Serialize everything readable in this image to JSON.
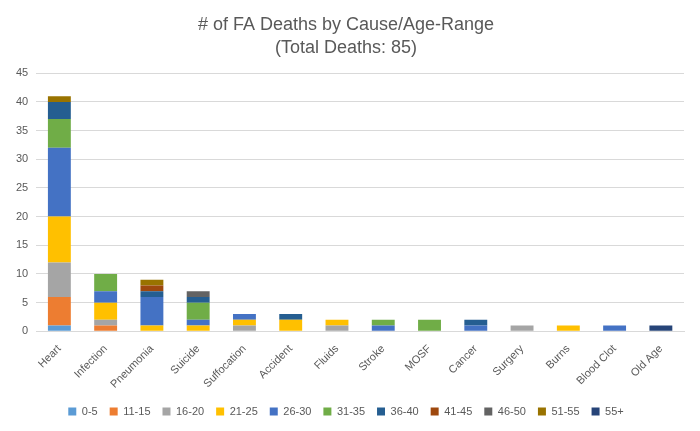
{
  "chart_data": {
    "type": "bar",
    "title": "# of FA Deaths by Cause/Age-Range",
    "subtitle": "(Total Deaths: 85)",
    "categories": [
      "Heart",
      "Infection",
      "Pneumonia",
      "Suicide",
      "Suffocation",
      "Accident",
      "Fluids",
      "Stroke",
      "MOSF",
      "Cancer",
      "Surgery",
      "Burns",
      "Blood Clot",
      "Old Age"
    ],
    "series": [
      {
        "name": "0-5",
        "color": "#5B9BD5",
        "values": [
          1,
          0,
          0,
          0,
          0,
          0,
          0,
          0,
          0,
          0,
          0,
          0,
          0,
          0
        ]
      },
      {
        "name": "11-15",
        "color": "#ED7D31",
        "values": [
          5,
          1,
          0,
          0,
          0,
          0,
          0,
          0,
          0,
          0,
          0,
          0,
          0,
          0
        ]
      },
      {
        "name": "16-20",
        "color": "#A5A5A5",
        "values": [
          6,
          1,
          0,
          0,
          1,
          0,
          1,
          0,
          0,
          0,
          1,
          0,
          0,
          0
        ]
      },
      {
        "name": "21-25",
        "color": "#FFC000",
        "values": [
          8,
          3,
          1,
          1,
          1,
          2,
          1,
          0,
          0,
          0,
          0,
          1,
          0,
          0
        ]
      },
      {
        "name": "26-30",
        "color": "#4472C4",
        "values": [
          12,
          2,
          5,
          1,
          1,
          0,
          0,
          1,
          0,
          1,
          0,
          0,
          1,
          0
        ]
      },
      {
        "name": "31-35",
        "color": "#70AD47",
        "values": [
          5,
          3,
          0,
          3,
          0,
          0,
          0,
          1,
          2,
          0,
          0,
          0,
          0,
          0
        ]
      },
      {
        "name": "36-40",
        "color": "#255E91",
        "values": [
          3,
          0,
          1,
          1,
          0,
          1,
          0,
          0,
          0,
          1,
          0,
          0,
          0,
          0
        ]
      },
      {
        "name": "41-45",
        "color": "#9E480E",
        "values": [
          0,
          0,
          1,
          0,
          0,
          0,
          0,
          0,
          0,
          0,
          0,
          0,
          0,
          0
        ]
      },
      {
        "name": "46-50",
        "color": "#636363",
        "values": [
          0,
          0,
          0,
          1,
          0,
          0,
          0,
          0,
          0,
          0,
          0,
          0,
          0,
          0
        ]
      },
      {
        "name": "51-55",
        "color": "#997300",
        "values": [
          1,
          0,
          1,
          0,
          0,
          0,
          0,
          0,
          0,
          0,
          0,
          0,
          0,
          0
        ]
      },
      {
        "name": "55+",
        "color": "#264478",
        "values": [
          0,
          0,
          0,
          0,
          0,
          0,
          0,
          0,
          0,
          0,
          0,
          0,
          0,
          1
        ]
      }
    ],
    "ylim": [
      0,
      45
    ],
    "yticks": [
      0,
      5,
      10,
      15,
      20,
      25,
      30,
      35,
      40,
      45
    ],
    "stacked": true,
    "grid": true,
    "legend": "bottom"
  }
}
